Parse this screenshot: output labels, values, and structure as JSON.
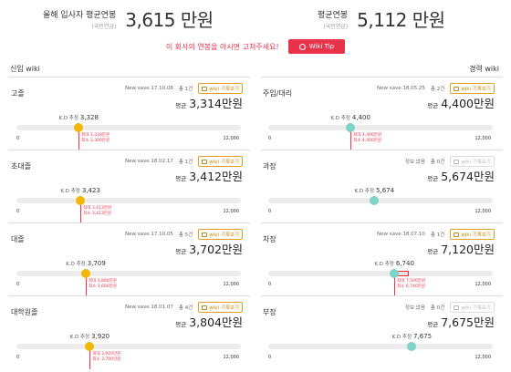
{
  "summary": {
    "left_label": "올해 입사자 평균연봉",
    "left_sub": "(국민연금)",
    "left_value": "3,615 만원",
    "right_label": "평균연봉",
    "right_sub": "(국민연금)",
    "right_value": "5,112 만원"
  },
  "tip": {
    "text": "이 회사의 연봉을 아시면 고쳐주세요!",
    "button": "Wiki Tip"
  },
  "columns": {
    "left_title": "신입 wiki",
    "right_title": "경력 wiki"
  },
  "common": {
    "kd_label": "K.D 추정",
    "avg_label": "평균",
    "axis_min": "0",
    "axis_max": "12,000"
  },
  "left_panels": [
    {
      "category": "고졸",
      "save": "New save 17.10.08",
      "count": "총 1건",
      "wiki_btn": "wiki 기록보기",
      "avg": "3,314만원",
      "kd": "3,328",
      "kd_value": 3328,
      "max": "최대 3,328만원",
      "min": "최소 3,300만원",
      "range_min": 3300,
      "range_max": 3328
    },
    {
      "category": "초대졸",
      "save": "New save 18.02.17",
      "count": "총 1건",
      "wiki_btn": "wiki 기록보기",
      "avg": "3,412만원",
      "kd": "3,423",
      "kd_value": 3423,
      "max": "최대 3,413만원",
      "min": "최소 3,413만원",
      "range_min": 3413,
      "range_max": 3413
    },
    {
      "category": "대졸",
      "save": "New save 17.10.05",
      "count": "총 5건",
      "wiki_btn": "wiki 기록보기",
      "avg": "3,702만원",
      "kd": "3,709",
      "kd_value": 3709,
      "max": "최대 3,800만원",
      "min": "최소 3,600만원",
      "range_min": 3600,
      "range_max": 3800
    },
    {
      "category": "대학원졸",
      "save": "New save 18.01.07",
      "count": "총 4건",
      "wiki_btn": "wiki 기록보기",
      "avg": "3,804만원",
      "kd": "3,920",
      "kd_value": 3920,
      "max": "최대 3,920만원",
      "min": "최소 3,700만원",
      "range_min": 3700,
      "range_max": 3920
    }
  ],
  "right_panels": [
    {
      "category": "주임/대리",
      "save": "New save 18.05.25",
      "count": "총 2건",
      "wiki_btn": "wiki 기록보기",
      "avg": "4,400만원",
      "kd": "4,400",
      "kd_value": 4400,
      "max": "최대 4,400만원",
      "min": "최소 4,400만원",
      "range_min": 4400,
      "range_max": 4400,
      "disabled": false
    },
    {
      "category": "과장",
      "save": "정보 없음",
      "count": "총 0건",
      "wiki_btn": "wiki 기록보기",
      "avg": "5,674만원",
      "kd": "5,674",
      "kd_value": 5674,
      "max": "",
      "min": "",
      "disabled": true
    },
    {
      "category": "차장",
      "save": "New save 18.07.10",
      "count": "총 1건",
      "wiki_btn": "wiki 기록보기",
      "avg": "7,120만원",
      "kd": "6,740",
      "kd_value": 6740,
      "max": "최대 7,500만원",
      "min": "최소 6,740만원",
      "range_min": 6740,
      "range_max": 7500,
      "disabled": false
    },
    {
      "category": "부장",
      "save": "정보 없음",
      "count": "총 0건",
      "wiki_btn": "wiki 기록보기",
      "avg": "7,675만원",
      "kd": "7,675",
      "kd_value": 7675,
      "max": "",
      "min": "",
      "disabled": true
    }
  ],
  "colors": {
    "accent": "#e8334a",
    "gold_dot": "#f2b705",
    "teal_dot": "#7fd3c9",
    "wiki_border": "#e0a020"
  }
}
